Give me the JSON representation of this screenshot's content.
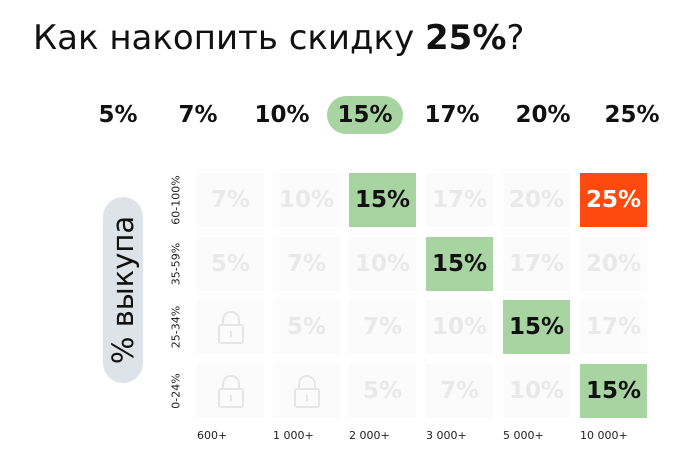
{
  "title": {
    "before": "Как накопить скидку ",
    "bold": "25%",
    "after": "?"
  },
  "header": [
    "5%",
    "7%",
    "10%",
    "15%",
    "17%",
    "20%",
    "25%"
  ],
  "header_highlight": {
    "index": 3,
    "color": "#a8d4a1"
  },
  "axis_label": "% выкупа",
  "row_labels": [
    "60-100%",
    "35-59%",
    "25-34%",
    "0-24%"
  ],
  "column_labels": [
    "600+",
    "1 000+",
    "2 000+",
    "3 000+",
    "5 000+",
    "10 000+"
  ],
  "cells": [
    [
      {
        "text": "7%"
      },
      {
        "text": "10%"
      },
      {
        "text": "15%",
        "color": "#a8d4a1"
      },
      {
        "text": "17%"
      },
      {
        "text": "20%"
      },
      {
        "text": "25%",
        "color": "#ff4a0f",
        "text_color": "#ffffff"
      }
    ],
    [
      {
        "text": "5%"
      },
      {
        "text": "7%"
      },
      {
        "text": "10%"
      },
      {
        "text": "15%",
        "color": "#a8d4a1"
      },
      {
        "text": "17%"
      },
      {
        "text": "20%"
      }
    ],
    [
      null,
      {
        "text": "5%"
      },
      {
        "text": "7%"
      },
      {
        "text": "10%"
      },
      {
        "text": "15%",
        "color": "#a8d4a1"
      },
      {
        "text": "17%"
      }
    ],
    [
      null,
      null,
      {
        "text": "5%"
      },
      {
        "text": "7%"
      },
      {
        "text": "10%"
      },
      {
        "text": "15%",
        "color": "#a8d4a1"
      }
    ]
  ]
}
